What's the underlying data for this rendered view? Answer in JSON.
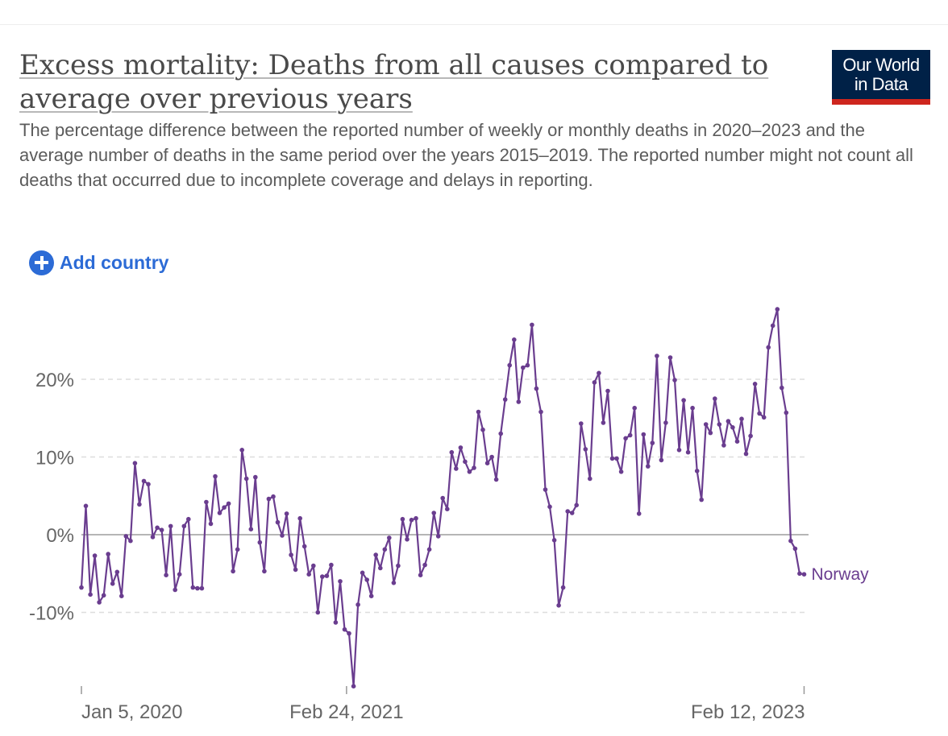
{
  "header": {
    "title": "Excess mortality: Deaths from all causes compared to average over previous years",
    "subtitle": "The percentage difference between the reported number of weekly or monthly deaths in 2020–2023 and the average number of deaths in the same period over the years 2015–2019. The reported number might not count all deaths that occurred due to incomplete coverage and delays in reporting.",
    "logo_line1": "Our World",
    "logo_line2": "in Data"
  },
  "controls": {
    "add_country_label": "Add country",
    "add_country_icon": "plus-circle-icon"
  },
  "colors": {
    "series": "#6a3d8f",
    "brand_navy": "#002147",
    "brand_red": "#ce261e",
    "link_blue": "#2c6bd6"
  },
  "chart_data": {
    "type": "line",
    "title": "Excess mortality: Deaths from all causes compared to average over previous years",
    "xlabel": "",
    "ylabel": "",
    "ylim": [
      -20,
      30
    ],
    "x_start": "Jan 5, 2020",
    "x_end": "Feb 19, 2023",
    "point_interval": "weekly",
    "x_ticks": [
      "Jan 5, 2020",
      "Feb 24, 2021",
      "Feb 12, 2023"
    ],
    "y_ticks": [
      -10,
      0,
      10,
      20
    ],
    "y_tick_labels": [
      "-10%",
      "0%",
      "10%",
      "20%"
    ],
    "grid": "horizontal dashed",
    "series": [
      {
        "name": "Norway",
        "color": "#6a3d8f",
        "values": [
          -6.8,
          3.7,
          -7.7,
          -2.7,
          -8.7,
          -7.8,
          -2.5,
          -6.3,
          -4.8,
          -7.9,
          -0.2,
          -0.8,
          9.2,
          3.9,
          6.9,
          6.5,
          -0.3,
          0.9,
          0.6,
          -5.2,
          1.1,
          -7.1,
          -5.1,
          1.1,
          2.0,
          -6.8,
          -6.9,
          -6.9,
          4.2,
          1.4,
          7.5,
          2.8,
          3.5,
          4.0,
          -4.7,
          -1.9,
          10.9,
          7.2,
          0.7,
          7.4,
          -1.0,
          -4.7,
          4.6,
          4.9,
          1.6,
          -0.1,
          2.7,
          -2.6,
          -4.5,
          2.1,
          -1.5,
          -5.1,
          -4.0,
          -10.0,
          -5.4,
          -5.3,
          -3.9,
          -11.3,
          -6.0,
          -12.2,
          -12.7,
          -19.5,
          -9.0,
          -4.9,
          -5.8,
          -7.9,
          -2.6,
          -4.3,
          -1.9,
          -0.4,
          -6.2,
          -4.0,
          2.0,
          -0.6,
          1.9,
          2.1,
          -5.2,
          -3.9,
          -1.9,
          2.8,
          -0.2,
          4.7,
          3.3,
          10.6,
          8.5,
          11.2,
          9.4,
          8.1,
          8.6,
          15.8,
          13.5,
          9.2,
          10.0,
          7.1,
          13.0,
          17.4,
          21.8,
          25.1,
          17.1,
          21.5,
          21.8,
          27.0,
          18.8,
          15.8,
          5.8,
          3.6,
          -0.7,
          -9.1,
          -6.8,
          3.0,
          2.8,
          3.8,
          14.3,
          11.0,
          7.2,
          19.6,
          20.8,
          14.4,
          18.5,
          9.8,
          9.8,
          8.1,
          12.4,
          12.8,
          16.3,
          2.7,
          12.9,
          8.8,
          11.8,
          23.0,
          9.6,
          14.4,
          22.8,
          19.9,
          10.9,
          17.3,
          10.6,
          16.3,
          8.2,
          4.5,
          14.2,
          13.1,
          17.5,
          14.2,
          11.5,
          14.6,
          13.8,
          12.0,
          14.9,
          10.4,
          12.7,
          19.4,
          15.6,
          15.1,
          24.1,
          26.9,
          29.0,
          18.9,
          15.7,
          -0.8,
          -1.8,
          -5.0,
          -5.1
        ]
      }
    ]
  }
}
